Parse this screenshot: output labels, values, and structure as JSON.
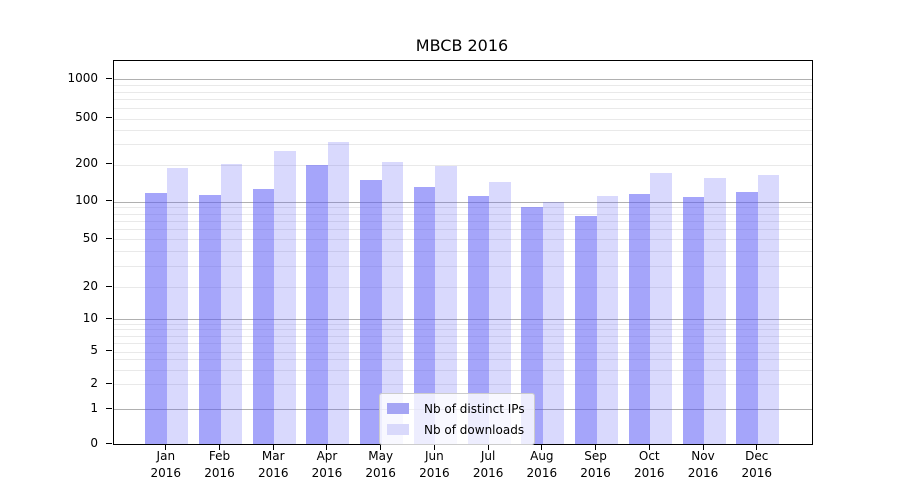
{
  "chart_data": {
    "type": "bar",
    "title": "MBCB 2016",
    "xlabel": "",
    "ylabel": "",
    "categories": [
      "Jan 2016",
      "Feb 2016",
      "Mar 2016",
      "Apr 2016",
      "May 2016",
      "Jun 2016",
      "Jul 2016",
      "Aug 2016",
      "Sep 2016",
      "Oct 2016",
      "Nov 2016",
      "Dec 2016"
    ],
    "x_tick_months": [
      "Jan",
      "Feb",
      "Mar",
      "Apr",
      "May",
      "Jun",
      "Jul",
      "Aug",
      "Sep",
      "Oct",
      "Nov",
      "Dec"
    ],
    "x_tick_year": "2016",
    "series": [
      {
        "name": "Nb of distinct IPs",
        "color": "rgba(90,90,245,0.545)",
        "legend_color": "#a5a5f4",
        "values": [
          117,
          112,
          127,
          197,
          149,
          132,
          110,
          90,
          77,
          116,
          108,
          119
        ]
      },
      {
        "name": "Nb of downloads",
        "color": "rgba(90,90,245,0.23)",
        "legend_color": "#d9d9fb",
        "values": [
          188,
          204,
          260,
          312,
          212,
          194,
          144,
          100,
          111,
          170,
          155,
          163
        ]
      }
    ],
    "y_axis": {
      "scale": "symlog",
      "ticks": [
        0,
        1,
        2,
        5,
        10,
        20,
        50,
        100,
        200,
        500,
        1000
      ],
      "tick_labels": [
        "0",
        "1",
        "2",
        "5",
        "10",
        "20",
        "50",
        "100",
        "200",
        "500",
        "1000"
      ],
      "ylim": [
        0,
        1400
      ]
    },
    "grid": {
      "major_ticks": [
        1,
        10,
        100,
        1000
      ],
      "minor_ticks": [
        2,
        3,
        4,
        5,
        6,
        7,
        8,
        9,
        20,
        30,
        40,
        50,
        60,
        70,
        80,
        90,
        200,
        300,
        400,
        500,
        600,
        700,
        800,
        900
      ],
      "major_color": "#b0b0b0",
      "minor_color": "#e9e9e9"
    },
    "legend_position": "lower center"
  }
}
